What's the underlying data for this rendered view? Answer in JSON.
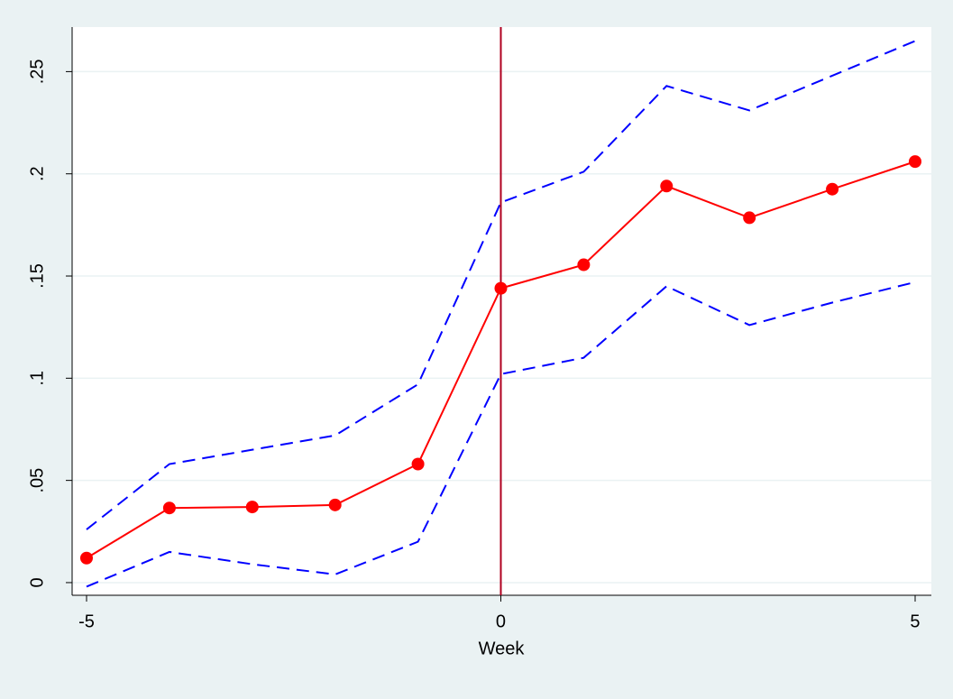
{
  "chart_data": {
    "type": "line",
    "x_label": "Week",
    "x": [
      -5,
      -4,
      -3,
      -2,
      -1,
      0,
      1,
      2,
      3,
      4,
      5
    ],
    "series": [
      {
        "color": "#0000ff",
        "line_style": "dashed",
        "markers": false,
        "values": [
          0.026,
          0.058,
          0.065,
          0.072,
          0.097,
          0.186,
          0.201,
          0.243,
          0.231,
          0.248,
          0.265
        ]
      },
      {
        "color": "#0000ff",
        "line_style": "dashed",
        "markers": false,
        "values": [
          -0.002,
          0.015,
          0.009,
          0.004,
          0.02,
          0.102,
          0.11,
          0.145,
          0.126,
          0.137,
          0.147
        ]
      },
      {
        "color": "#ff0000",
        "line_style": "solid",
        "markers": true,
        "values": [
          0.012,
          0.0365,
          0.037,
          0.038,
          0.058,
          0.144,
          0.1555,
          0.194,
          0.1785,
          0.1925,
          0.206
        ]
      }
    ],
    "xline": 0,
    "xline_color": "#b00020",
    "xlim": [
      -5.174,
      5.196
    ],
    "ylim": [
      -0.0062,
      0.2718
    ],
    "xticks": [
      -5,
      0,
      5
    ],
    "yticks": [
      0,
      {
        "value": 0.05,
        "label": ".05"
      },
      {
        "value": 0.1,
        "label": ".1"
      },
      {
        "value": 0.15,
        "label": ".15"
      },
      {
        "value": 0.2,
        "label": ".2"
      },
      {
        "value": 0.25,
        "label": ".25"
      }
    ],
    "grid": true
  }
}
